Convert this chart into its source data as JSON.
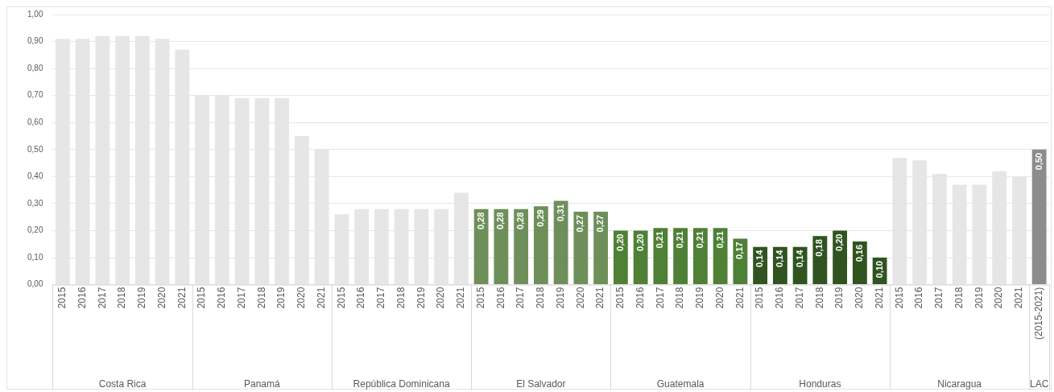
{
  "chart_data": {
    "type": "bar",
    "categories": [
      "2015",
      "2016",
      "2017",
      "2018",
      "2019",
      "2020",
      "2021",
      "2015",
      "2016",
      "2017",
      "2018",
      "2019",
      "2020",
      "2021",
      "2015",
      "2016",
      "2017",
      "2018",
      "2019",
      "2020",
      "2021",
      "2015",
      "2016",
      "2017",
      "2018",
      "2019",
      "2020",
      "2021",
      "2015",
      "2016",
      "2017",
      "2018",
      "2019",
      "2020",
      "2021",
      "2015",
      "2016",
      "2017",
      "2018",
      "2019",
      "2020",
      "2021",
      "2015",
      "2016",
      "2017",
      "2018",
      "2019",
      "2020",
      "2021",
      "(2015-2021)"
    ],
    "series": [
      {
        "color": "#e6e6e6",
        "values": [
          0.91,
          0.91,
          0.92,
          0.92,
          0.92,
          0.91,
          0.87,
          null,
          null,
          null,
          null,
          null,
          null,
          null,
          null,
          null,
          null,
          null,
          null,
          null,
          null,
          null,
          null,
          null,
          null,
          null,
          null,
          null,
          null,
          null,
          null,
          null,
          null,
          null,
          null,
          null,
          null,
          null,
          null,
          null,
          null,
          null,
          null,
          null,
          null,
          null,
          null,
          null,
          null,
          null
        ]
      },
      {
        "color": "#e6e6e6",
        "values": [
          null,
          null,
          null,
          null,
          null,
          null,
          null,
          0.7,
          0.7,
          0.69,
          0.69,
          0.69,
          0.55,
          0.5,
          null,
          null,
          null,
          null,
          null,
          null,
          null,
          null,
          null,
          null,
          null,
          null,
          null,
          null,
          null,
          null,
          null,
          null,
          null,
          null,
          null,
          null,
          null,
          null,
          null,
          null,
          null,
          null,
          null,
          null,
          null,
          null,
          null,
          null,
          null,
          null
        ]
      },
      {
        "color": "#e6e6e6",
        "values": [
          null,
          null,
          null,
          null,
          null,
          null,
          null,
          null,
          null,
          null,
          null,
          null,
          null,
          null,
          0.26,
          0.28,
          0.28,
          0.28,
          0.28,
          0.28,
          0.34,
          null,
          null,
          null,
          null,
          null,
          null,
          null,
          null,
          null,
          null,
          null,
          null,
          null,
          null,
          null,
          null,
          null,
          null,
          null,
          null,
          null,
          null,
          null,
          null,
          null,
          null,
          null,
          null,
          null
        ]
      },
      {
        "color": "#6e8f5a",
        "values": [
          null,
          null,
          null,
          null,
          null,
          null,
          null,
          null,
          null,
          null,
          null,
          null,
          null,
          null,
          null,
          null,
          null,
          null,
          null,
          null,
          null,
          0.28,
          0.28,
          0.28,
          0.29,
          0.31,
          0.27,
          0.27,
          null,
          null,
          null,
          null,
          null,
          null,
          null,
          null,
          null,
          null,
          null,
          null,
          null,
          null,
          null,
          null,
          null,
          null,
          null,
          null,
          null,
          null
        ],
        "value_labels": [
          null,
          null,
          null,
          null,
          null,
          null,
          null,
          null,
          null,
          null,
          null,
          null,
          null,
          null,
          null,
          null,
          null,
          null,
          null,
          null,
          null,
          "0,28",
          "0,28",
          "0,28",
          "0,29",
          "0,31",
          "0,27",
          "0,27",
          null,
          null,
          null,
          null,
          null,
          null,
          null,
          null,
          null,
          null,
          null,
          null,
          null,
          null,
          null,
          null,
          null,
          null,
          null,
          null,
          null,
          null
        ]
      },
      {
        "color": "#4e8036",
        "values": [
          null,
          null,
          null,
          null,
          null,
          null,
          null,
          null,
          null,
          null,
          null,
          null,
          null,
          null,
          null,
          null,
          null,
          null,
          null,
          null,
          null,
          null,
          null,
          null,
          null,
          null,
          null,
          null,
          0.2,
          0.2,
          0.21,
          0.21,
          0.21,
          0.21,
          0.17,
          null,
          null,
          null,
          null,
          null,
          null,
          null,
          null,
          null,
          null,
          null,
          null,
          null,
          null,
          null
        ],
        "value_labels": [
          null,
          null,
          null,
          null,
          null,
          null,
          null,
          null,
          null,
          null,
          null,
          null,
          null,
          null,
          null,
          null,
          null,
          null,
          null,
          null,
          null,
          null,
          null,
          null,
          null,
          null,
          null,
          null,
          "0,20",
          "0,20",
          "0,21",
          "0,21",
          "0,21",
          "0,21",
          "0,17",
          null,
          null,
          null,
          null,
          null,
          null,
          null,
          null,
          null,
          null,
          null,
          null,
          null,
          null,
          null
        ]
      },
      {
        "color": "#2f5420",
        "values": [
          null,
          null,
          null,
          null,
          null,
          null,
          null,
          null,
          null,
          null,
          null,
          null,
          null,
          null,
          null,
          null,
          null,
          null,
          null,
          null,
          null,
          null,
          null,
          null,
          null,
          null,
          null,
          null,
          null,
          null,
          null,
          null,
          null,
          null,
          null,
          0.14,
          0.14,
          0.14,
          0.18,
          0.2,
          0.16,
          0.1,
          null,
          null,
          null,
          null,
          null,
          null,
          null,
          null
        ],
        "value_labels": [
          null,
          null,
          null,
          null,
          null,
          null,
          null,
          null,
          null,
          null,
          null,
          null,
          null,
          null,
          null,
          null,
          null,
          null,
          null,
          null,
          null,
          null,
          null,
          null,
          null,
          null,
          null,
          null,
          null,
          null,
          null,
          null,
          null,
          null,
          null,
          "0,14",
          "0,14",
          "0,14",
          "0,18",
          "0,20",
          "0,16",
          "0,10",
          null,
          null,
          null,
          null,
          null,
          null,
          null,
          null
        ]
      },
      {
        "color": "#e6e6e6",
        "values": [
          null,
          null,
          null,
          null,
          null,
          null,
          null,
          null,
          null,
          null,
          null,
          null,
          null,
          null,
          null,
          null,
          null,
          null,
          null,
          null,
          null,
          null,
          null,
          null,
          null,
          null,
          null,
          null,
          null,
          null,
          null,
          null,
          null,
          null,
          null,
          null,
          null,
          null,
          null,
          null,
          null,
          null,
          0.47,
          0.46,
          0.41,
          0.37,
          0.37,
          0.42,
          0.4,
          null
        ]
      },
      {
        "color": "#8c8c8c",
        "values": [
          null,
          null,
          null,
          null,
          null,
          null,
          null,
          null,
          null,
          null,
          null,
          null,
          null,
          null,
          null,
          null,
          null,
          null,
          null,
          null,
          null,
          null,
          null,
          null,
          null,
          null,
          null,
          null,
          null,
          null,
          null,
          null,
          null,
          null,
          null,
          null,
          null,
          null,
          null,
          null,
          null,
          null,
          null,
          null,
          null,
          null,
          null,
          null,
          null,
          0.5
        ],
        "value_labels": [
          null,
          null,
          null,
          null,
          null,
          null,
          null,
          null,
          null,
          null,
          null,
          null,
          null,
          null,
          null,
          null,
          null,
          null,
          null,
          null,
          null,
          null,
          null,
          null,
          null,
          null,
          null,
          null,
          null,
          null,
          null,
          null,
          null,
          null,
          null,
          null,
          null,
          null,
          null,
          null,
          null,
          null,
          null,
          null,
          null,
          null,
          null,
          null,
          null,
          "0,50"
        ]
      }
    ],
    "ylim": [
      0,
      1
    ],
    "yticks": [
      {
        "value": 0,
        "label": "0,00"
      },
      {
        "value": 0.1,
        "label": "0,10"
      },
      {
        "value": 0.2,
        "label": "0,20"
      },
      {
        "value": 0.3,
        "label": "0,30"
      },
      {
        "value": 0.4,
        "label": "0,40"
      },
      {
        "value": 0.5,
        "label": "0,50"
      },
      {
        "value": 0.6,
        "label": "0,60"
      },
      {
        "value": 0.7,
        "label": "0,70"
      },
      {
        "value": 0.8,
        "label": "0,80"
      },
      {
        "value": 0.9,
        "label": "0,90"
      },
      {
        "value": 1,
        "label": "1,00"
      }
    ],
    "annotations": [
      "Costa Rica",
      "Panamá",
      "República Dominicana",
      "El Salvador",
      "Guatemala",
      "Honduras",
      "Nicaragua",
      "LAC"
    ],
    "grid": "y",
    "legend": false
  }
}
